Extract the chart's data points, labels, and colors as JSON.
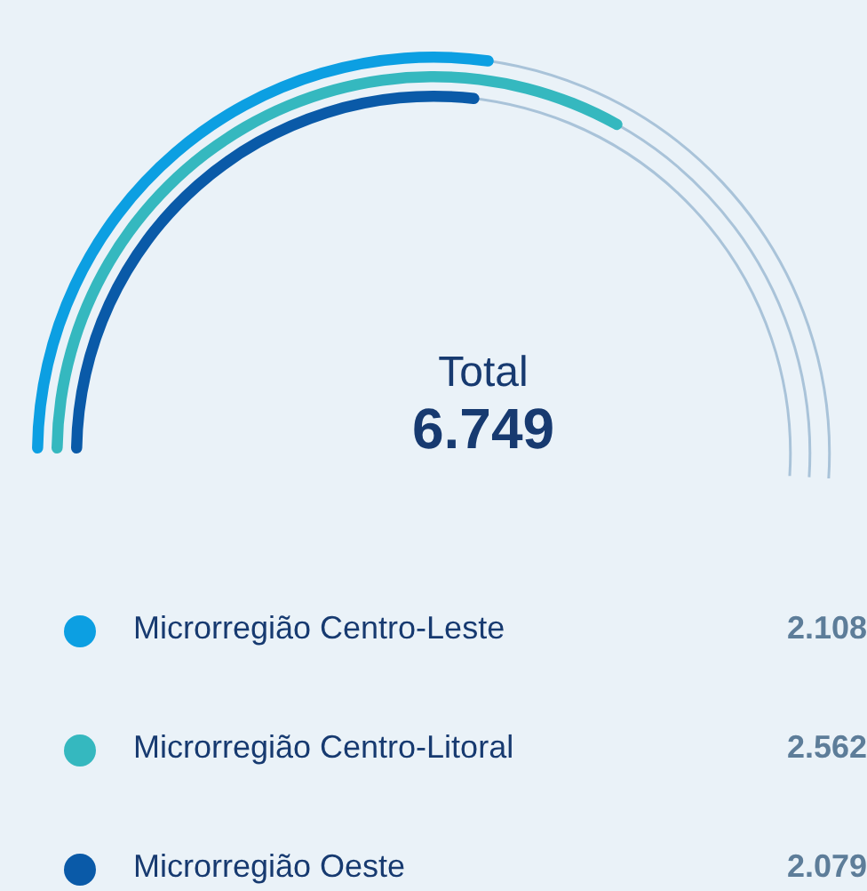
{
  "chart_data": {
    "type": "other",
    "title": "Total",
    "subtitle": "6.749",
    "categories": [
      "Microrregião Centro-Leste",
      "Microrregião Centro-Litoral",
      "Microrregião Oeste"
    ],
    "values": [
      2108,
      2562,
      2079
    ],
    "value_labels": [
      "2.108",
      "2.562",
      "2.079"
    ],
    "colors": [
      "#0c9fe2",
      "#35b8bf",
      "#0a5aa8"
    ]
  }
}
